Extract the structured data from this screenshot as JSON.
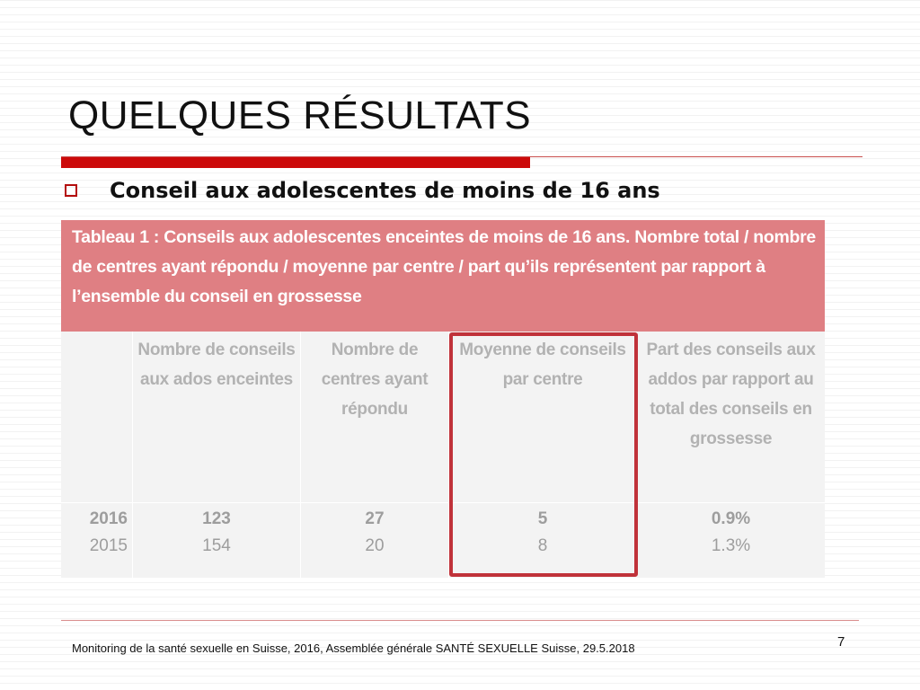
{
  "slide": {
    "title": "QUELQUES RÉSULTATS",
    "bullet": "Conseil aux adolescentes de moins de 16 ans",
    "page_number": "7",
    "footer": "Monitoring de la santé sexuelle en Suisse, 2016, Assemblée générale SANTÉ SEXUELLE Suisse, 29.5.2018"
  },
  "table": {
    "caption": "Tableau 1 : Conseils aux adolescentes enceintes de moins de 16 ans. Nombre total / nombre de centres ayant répondu / moyenne par centre / part qu’ils représentent par rapport à l’ensemble du conseil en grossesse",
    "headers": [
      "",
      "Nombre de conseils aux ados enceintes",
      "Nombre de centres ayant répondu",
      "Moyenne de conseils par centre",
      "Part des conseils aux addos par rapport au total des conseils en grossesse"
    ],
    "rows": [
      [
        "2016",
        "123",
        "27",
        "5",
        "0.9%"
      ],
      [
        "2015",
        "154",
        "20",
        "8",
        "1.3%"
      ]
    ]
  },
  "colors": {
    "accent_red": "#cc0a0a",
    "caption_bg": "#df7f83",
    "highlight_border": "#c0323a"
  }
}
